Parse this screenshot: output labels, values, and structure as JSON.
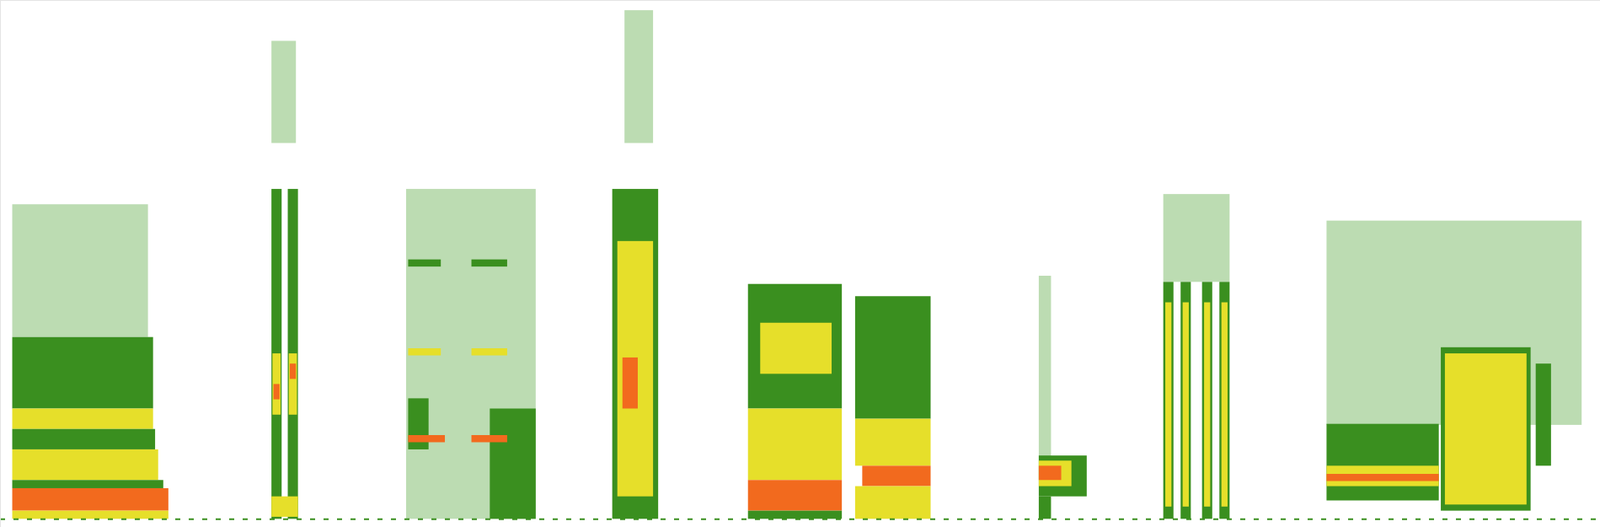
{
  "chart_data": {
    "type": "spectrogram",
    "xlim": [
      0,
      1568
    ],
    "ylim": [
      0,
      516
    ],
    "tick_labels": false,
    "levels": [
      1,
      2,
      3,
      4
    ],
    "colors": [
      "#bcdcb2",
      "#3a8f1f",
      "#e6df2a",
      "#f26a1e"
    ],
    "baseline": 8,
    "cells": [
      {
        "x1": 12,
        "x2": 145,
        "y1": 186,
        "y2": 316,
        "level": 1
      },
      {
        "x1": 12,
        "x2": 150,
        "y1": 116,
        "y2": 186,
        "level": 2
      },
      {
        "x1": 12,
        "x2": 150,
        "y1": 96,
        "y2": 116,
        "level": 3
      },
      {
        "x1": 12,
        "x2": 152,
        "y1": 76,
        "y2": 96,
        "level": 2
      },
      {
        "x1": 12,
        "x2": 155,
        "y1": 46,
        "y2": 76,
        "level": 3
      },
      {
        "x1": 12,
        "x2": 160,
        "y1": 38,
        "y2": 46,
        "level": 2
      },
      {
        "x1": 12,
        "x2": 165,
        "y1": 16,
        "y2": 38,
        "level": 4
      },
      {
        "x1": 12,
        "x2": 165,
        "y1": 8,
        "y2": 16,
        "level": 3
      },
      {
        "x1": 266,
        "x2": 290,
        "y1": 376,
        "y2": 476,
        "level": 1
      },
      {
        "x1": 266,
        "x2": 276,
        "y1": 8,
        "y2": 331,
        "level": 2
      },
      {
        "x1": 267,
        "x2": 275,
        "y1": 110,
        "y2": 170,
        "level": 3
      },
      {
        "x1": 268,
        "x2": 274,
        "y1": 125,
        "y2": 140,
        "level": 4
      },
      {
        "x1": 282,
        "x2": 292,
        "y1": 8,
        "y2": 331,
        "level": 2
      },
      {
        "x1": 283,
        "x2": 291,
        "y1": 110,
        "y2": 170,
        "level": 3
      },
      {
        "x1": 284,
        "x2": 290,
        "y1": 145,
        "y2": 160,
        "level": 4
      },
      {
        "x1": 266,
        "x2": 292,
        "y1": 10,
        "y2": 30,
        "level": 3
      },
      {
        "x1": 398,
        "x2": 525,
        "y1": 8,
        "y2": 331,
        "level": 1
      },
      {
        "x1": 400,
        "x2": 420,
        "y1": 76,
        "y2": 126,
        "level": 2
      },
      {
        "x1": 480,
        "x2": 525,
        "y1": 8,
        "y2": 116,
        "level": 2
      },
      {
        "x1": 400,
        "x2": 432,
        "y1": 255,
        "y2": 262,
        "level": 2
      },
      {
        "x1": 462,
        "x2": 497,
        "y1": 255,
        "y2": 262,
        "level": 2
      },
      {
        "x1": 400,
        "x2": 432,
        "y1": 168,
        "y2": 175,
        "level": 3
      },
      {
        "x1": 462,
        "x2": 497,
        "y1": 168,
        "y2": 175,
        "level": 3
      },
      {
        "x1": 400,
        "x2": 436,
        "y1": 83,
        "y2": 90,
        "level": 4
      },
      {
        "x1": 462,
        "x2": 497,
        "y1": 83,
        "y2": 90,
        "level": 4
      },
      {
        "x1": 612,
        "x2": 640,
        "y1": 376,
        "y2": 506,
        "level": 1
      },
      {
        "x1": 600,
        "x2": 645,
        "y1": 8,
        "y2": 331,
        "level": 2
      },
      {
        "x1": 605,
        "x2": 640,
        "y1": 30,
        "y2": 280,
        "level": 3
      },
      {
        "x1": 610,
        "x2": 625,
        "y1": 116,
        "y2": 166,
        "level": 4
      },
      {
        "x1": 733,
        "x2": 825,
        "y1": 116,
        "y2": 238,
        "level": 2
      },
      {
        "x1": 745,
        "x2": 815,
        "y1": 150,
        "y2": 200,
        "level": 3
      },
      {
        "x1": 733,
        "x2": 825,
        "y1": 46,
        "y2": 116,
        "level": 3
      },
      {
        "x1": 733,
        "x2": 825,
        "y1": 16,
        "y2": 46,
        "level": 4
      },
      {
        "x1": 733,
        "x2": 825,
        "y1": 8,
        "y2": 16,
        "level": 2
      },
      {
        "x1": 838,
        "x2": 912,
        "y1": 106,
        "y2": 226,
        "level": 2
      },
      {
        "x1": 838,
        "x2": 912,
        "y1": 60,
        "y2": 106,
        "level": 3
      },
      {
        "x1": 845,
        "x2": 912,
        "y1": 40,
        "y2": 60,
        "level": 4
      },
      {
        "x1": 838,
        "x2": 912,
        "y1": 8,
        "y2": 40,
        "level": 3
      },
      {
        "x1": 1018,
        "x2": 1030,
        "y1": 46,
        "y2": 246,
        "level": 1
      },
      {
        "x1": 1018,
        "x2": 1065,
        "y1": 30,
        "y2": 70,
        "level": 2
      },
      {
        "x1": 1018,
        "x2": 1050,
        "y1": 40,
        "y2": 65,
        "level": 3
      },
      {
        "x1": 1018,
        "x2": 1040,
        "y1": 46,
        "y2": 60,
        "level": 4
      },
      {
        "x1": 1018,
        "x2": 1030,
        "y1": 8,
        "y2": 30,
        "level": 2
      },
      {
        "x1": 1140,
        "x2": 1205,
        "y1": 240,
        "y2": 326,
        "level": 1
      },
      {
        "x1": 1140,
        "x2": 1150,
        "y1": 8,
        "y2": 240,
        "level": 2
      },
      {
        "x1": 1142,
        "x2": 1148,
        "y1": 20,
        "y2": 220,
        "level": 3
      },
      {
        "x1": 1157,
        "x2": 1167,
        "y1": 8,
        "y2": 240,
        "level": 2
      },
      {
        "x1": 1159,
        "x2": 1165,
        "y1": 20,
        "y2": 220,
        "level": 3
      },
      {
        "x1": 1178,
        "x2": 1188,
        "y1": 8,
        "y2": 240,
        "level": 2
      },
      {
        "x1": 1180,
        "x2": 1186,
        "y1": 20,
        "y2": 220,
        "level": 3
      },
      {
        "x1": 1195,
        "x2": 1205,
        "y1": 8,
        "y2": 240,
        "level": 2
      },
      {
        "x1": 1197,
        "x2": 1203,
        "y1": 20,
        "y2": 220,
        "level": 3
      },
      {
        "x1": 1300,
        "x2": 1550,
        "y1": 100,
        "y2": 300,
        "level": 1
      },
      {
        "x1": 1300,
        "x2": 1410,
        "y1": 26,
        "y2": 101,
        "level": 2
      },
      {
        "x1": 1300,
        "x2": 1410,
        "y1": 40,
        "y2": 60,
        "level": 3
      },
      {
        "x1": 1300,
        "x2": 1410,
        "y1": 45,
        "y2": 52,
        "level": 4
      },
      {
        "x1": 1412,
        "x2": 1500,
        "y1": 16,
        "y2": 176,
        "level": 2
      },
      {
        "x1": 1416,
        "x2": 1496,
        "y1": 22,
        "y2": 170,
        "level": 3
      },
      {
        "x1": 1505,
        "x2": 1520,
        "y1": 60,
        "y2": 160,
        "level": 2
      }
    ]
  }
}
